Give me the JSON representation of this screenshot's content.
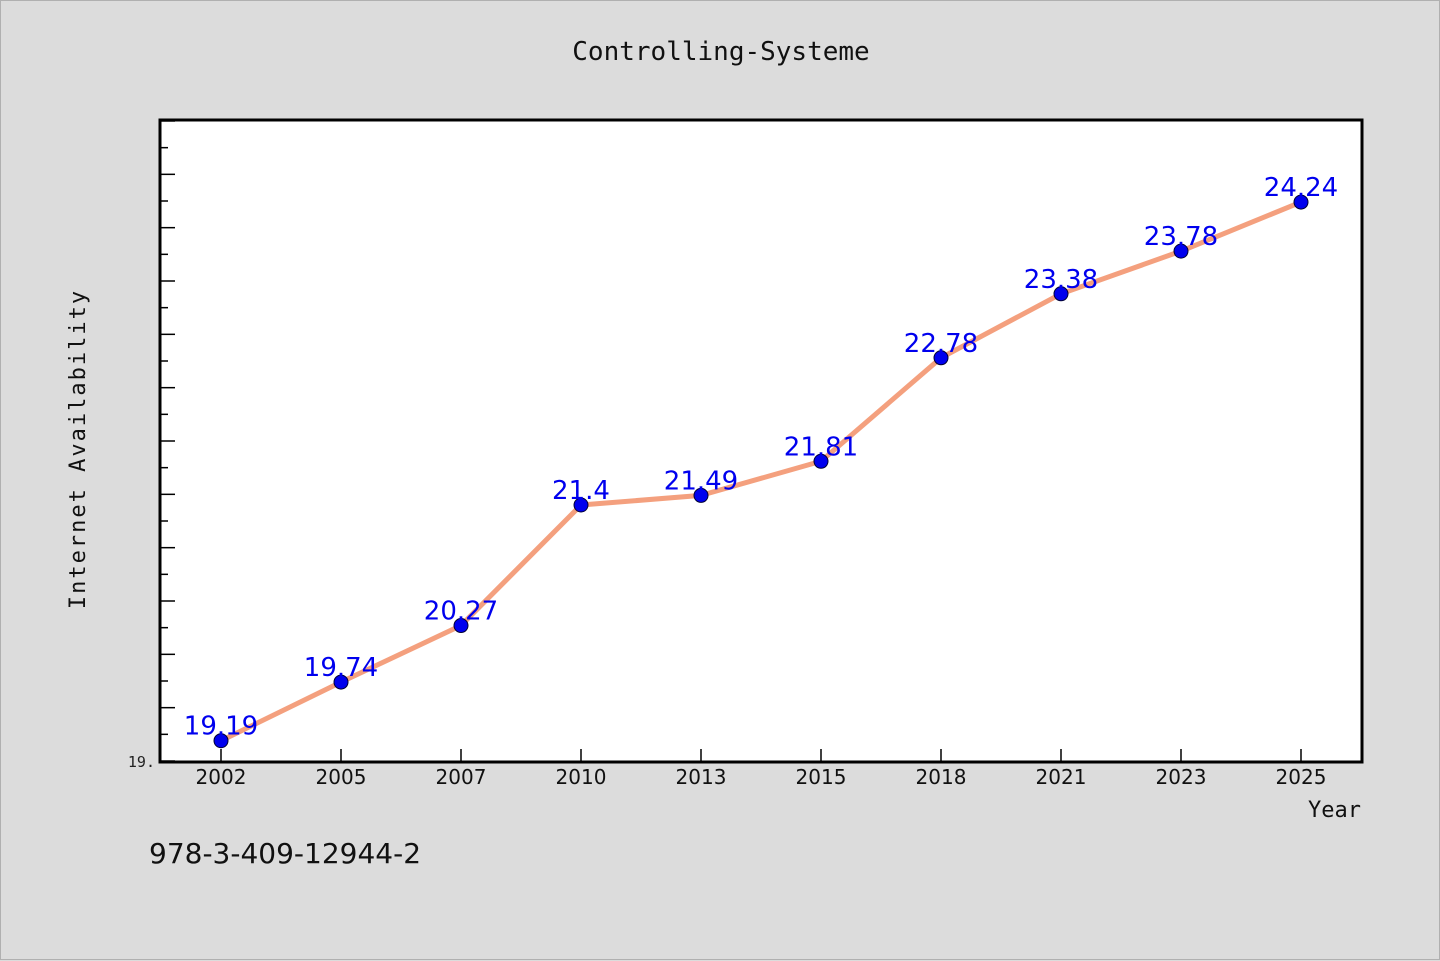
{
  "chart_data": {
    "type": "line",
    "title": "Controlling-Systeme",
    "xlabel": "Year",
    "ylabel": "Internet Availability",
    "categories": [
      "2002",
      "2005",
      "2007",
      "2010",
      "2013",
      "2015",
      "2018",
      "2021",
      "2023",
      "2025"
    ],
    "series": [
      {
        "values": [
          19.19,
          19.74,
          20.27,
          21.4,
          21.49,
          21.81,
          22.78,
          23.38,
          23.78,
          24.24
        ],
        "labels": [
          "19.19",
          "19.74",
          "20.27",
          "21.4",
          "21.49",
          "21.81",
          "22.78",
          "23.38",
          "23.78",
          "24.24"
        ]
      }
    ],
    "ylim": [
      19.0,
      25.0
    ],
    "y_tick_label": "19.",
    "grid": false,
    "legend": "none",
    "line_color": "#f4a07e",
    "marker_color": "#0000ee",
    "label_color": "#0000ee"
  },
  "footer": {
    "isbn": "978-3-409-12944-2"
  }
}
